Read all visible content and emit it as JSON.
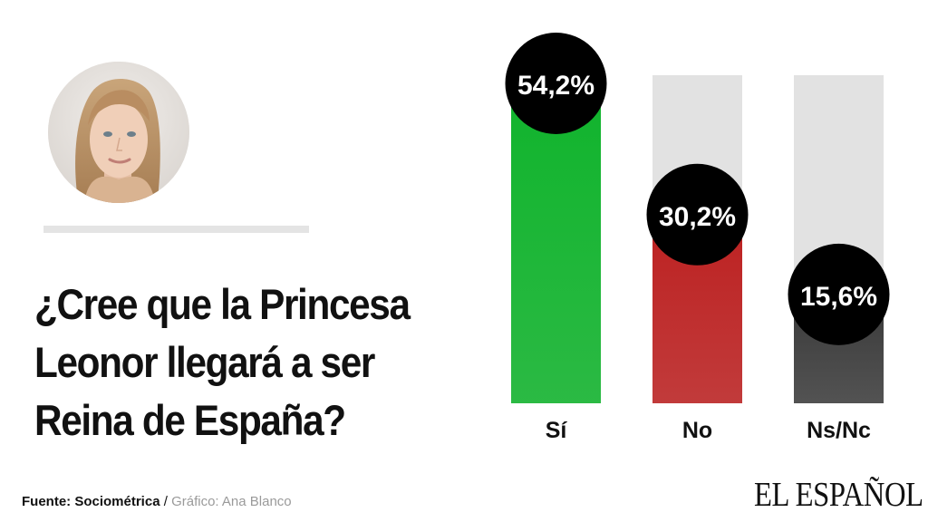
{
  "question_lines": [
    "¿Cree que la Princesa",
    "Leonor llegará a ser",
    "Reina de España?"
  ],
  "footer": {
    "source_label": "Fuente: Sociométrica",
    "separator": " / ",
    "credit": "Gráfico: Ana Blanco"
  },
  "logo_text": "EL ESPAÑOL",
  "colors": {
    "track": "#e2e2e2",
    "bubble": "#000000",
    "bubble_text": "#ffffff",
    "si": "#12b42e",
    "no": "#bd2424",
    "nsnc": "#3f3f3f"
  },
  "chart_data": {
    "type": "bar",
    "categories": [
      "Sí",
      "No",
      "Ns/Nc"
    ],
    "values": [
      54.2,
      30.2,
      15.6
    ],
    "value_labels": [
      "54,2%",
      "30,2%",
      "15,6%"
    ],
    "ylim": [
      0,
      60
    ],
    "bar_colors": [
      "#12b42e",
      "#bd2424",
      "#3f3f3f"
    ],
    "grid": false,
    "legend": "none"
  }
}
